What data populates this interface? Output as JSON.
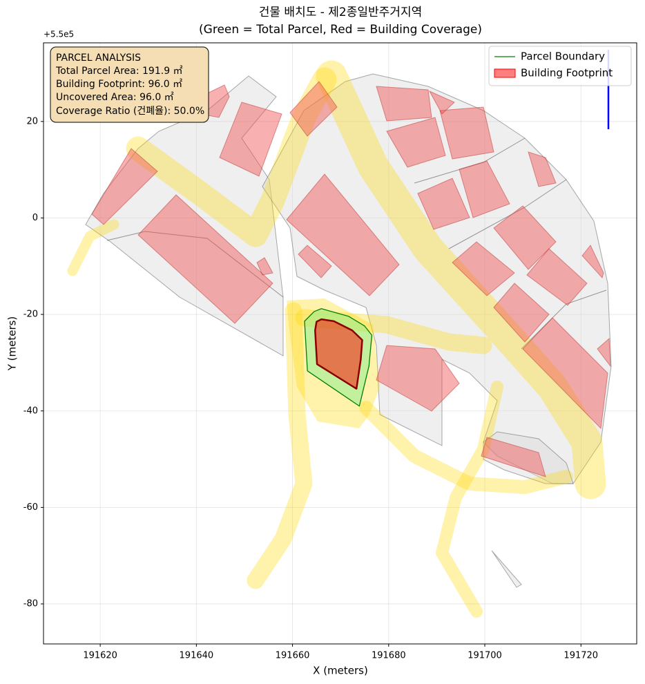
{
  "chart_data": {
    "type": "polygon",
    "title": "건물 배치도 - 제2종일반주거지역",
    "subtitle": "(Green = Total Parcel, Red = Building Coverage)",
    "x_label": "X (meters)",
    "y_label": "Y (meters)",
    "y_offset_text": "+5.5e5",
    "xlim": [
      191608.2,
      191731.6
    ],
    "ylim": [
      -88.3,
      36.3
    ],
    "xticks": [
      191620,
      191640,
      191660,
      191680,
      191700,
      191720
    ],
    "yticks": [
      20,
      0,
      -20,
      -40,
      -60,
      -80
    ],
    "grid": true,
    "legend": "upper right",
    "annotations": [
      "PARCEL ANALYSIS",
      "Total Parcel Area: 191.9 ㎡",
      "Building Footprint: 96.0 ㎡",
      "Uncovered Area: 96.0 ㎡",
      "Coverage Ratio (건폐율): 50.0%"
    ],
    "series": [
      {
        "name": "Parcel Boundary",
        "color": "#008000",
        "fill_color": "#90ee90",
        "x": [
          191662.5,
          191664.5,
          191666.0,
          191671.7,
          191675.0,
          191676.5,
          191675.9,
          191673.9,
          191663.1
        ],
        "y": [
          -21.4,
          -19.4,
          -18.8,
          -20.4,
          -22.4,
          -24.3,
          -30.7,
          -39.0,
          -31.7
        ]
      },
      {
        "name": "Building Footprint",
        "color": "#8b0000",
        "fill_color": "#ff0000",
        "x": [
          191664.7,
          191665.0,
          191666.0,
          191668.6,
          191672.4,
          191674.5,
          191674.2,
          191673.3,
          191665.1
        ],
        "y": [
          -23.3,
          -21.5,
          -21.0,
          -21.4,
          -23.3,
          -25.3,
          -29.3,
          -35.4,
          -30.3
        ]
      }
    ]
  }
}
